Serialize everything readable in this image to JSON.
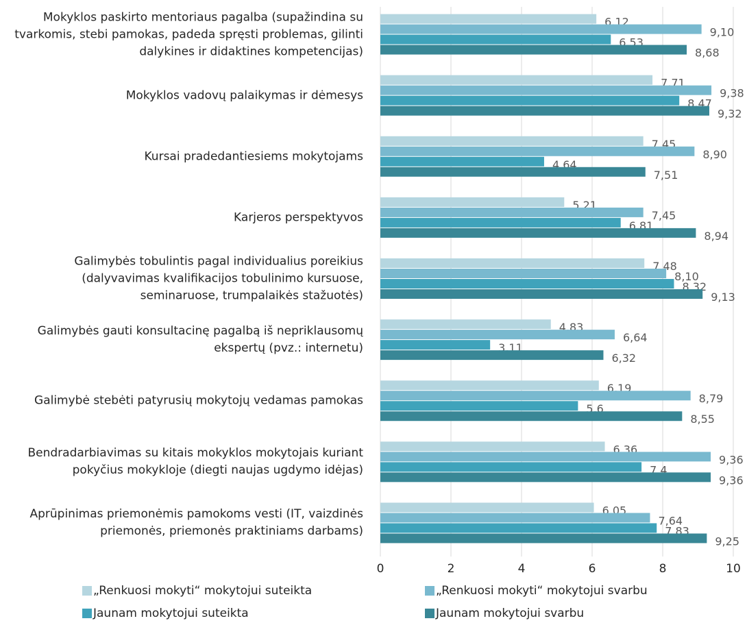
{
  "chart_data": {
    "type": "bar",
    "orientation": "horizontal",
    "categories": [
      "Mokyklos paskirto mentoriaus pagalba (supažindina su tvarkomis, stebi pamokas, padeda spręsti problemas, gilinti dalykines ir didaktines kompetencijas)",
      "Mokyklos vadovų palaikymas ir dėmesys",
      "Kursai pradedantiesiems mokytojams",
      "Karjeros perspektyvos",
      "Galimybės tobulintis pagal individualius poreikius (dalyvavimas kvalifikacijos tobulinimo kursuose, seminaruose, trumpalaikės stažuotės)",
      "Galimybės gauti konsultacinę pagalbą iš nepriklausomų ekspertų (pvz.: internetu)",
      "Galimybė stebėti patyrusių mokytojų vedamas pamokas",
      "Bendradarbiavimas su kitais mokyklos mokytojais kuriant pokyčius mokykloje (diegti naujas ugdymo idėjas)",
      "Aprūpinimas priemonėmis pamokoms vesti (IT, vaizdinės priemonės, priemonės praktiniams darbams)"
    ],
    "series": [
      {
        "name": "„Renkuosi mokyti“  mokytojui suteikta",
        "color": "#b5d6e0",
        "values": [
          6.12,
          7.71,
          7.45,
          5.21,
          7.48,
          4.83,
          6.19,
          6.36,
          6.05
        ],
        "value_labels": [
          "6,12",
          "7,71",
          "7,45",
          "5,21",
          "7,48",
          "4,83",
          "6,19",
          "6,36",
          "6,05"
        ]
      },
      {
        "name": "„Renkuosi mokyti“ mokytojui svarbu",
        "color": "#79b9cf",
        "values": [
          9.1,
          9.38,
          8.9,
          7.45,
          8.1,
          6.64,
          8.79,
          9.36,
          7.64
        ],
        "value_labels": [
          "9,10",
          "9,38",
          "8,90",
          "7,45",
          "8,10",
          "6,64",
          "8,79",
          "9,36",
          "7,64"
        ]
      },
      {
        "name": "Jaunam mokytojui suteikta",
        "color": "#3fa3bb",
        "values": [
          6.53,
          8.47,
          4.64,
          6.81,
          8.32,
          3.11,
          5.6,
          7.4,
          7.83
        ],
        "value_labels": [
          "6,53",
          "8,47",
          "4,64",
          "6,81",
          "8,32",
          "3,11",
          "5,6",
          "7,4",
          "7,83"
        ]
      },
      {
        "name": "Jaunam mokytojui svarbu",
        "color": "#398796",
        "values": [
          8.68,
          9.32,
          7.51,
          8.94,
          9.13,
          6.32,
          8.55,
          9.36,
          9.25
        ],
        "value_labels": [
          "8,68",
          "9,32",
          "7,51",
          "8,94",
          "9,13",
          "6,32",
          "8,55",
          "9,36",
          "9,25"
        ]
      }
    ],
    "xlim": [
      0,
      10
    ],
    "xticks": [
      0,
      2,
      4,
      6,
      8,
      10
    ],
    "grid": true,
    "legend": "bottom"
  }
}
